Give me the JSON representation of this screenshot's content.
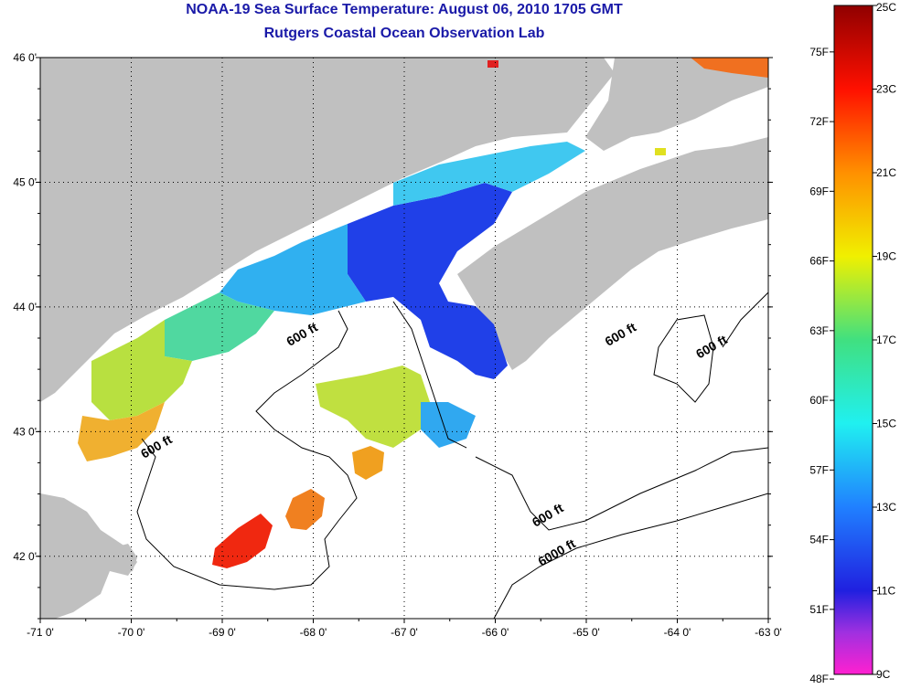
{
  "title_line1": "NOAA-19 Sea Surface Temperature:  August 06, 2010 1705 GMT",
  "title_line2": "Rutgers Coastal Ocean Observation Lab",
  "map": {
    "lon_min": -71.0,
    "lon_max": -63.0,
    "lat_min": 41.5,
    "lat_max": 46.0,
    "lon_ticks": [
      -71,
      -70,
      -69,
      -68,
      -67,
      -66,
      -65,
      -64,
      -63
    ],
    "lon_tick_labels": [
      "-71 0'",
      "-70 0'",
      "-69 0'",
      "-68 0'",
      "-67 0'",
      "-66 0'",
      "-65 0'",
      "-64 0'",
      "-63 0'"
    ],
    "lat_ticks": [
      46,
      45,
      44,
      43,
      42
    ],
    "lat_tick_labels": [
      "46 0'",
      "45 0'",
      "44 0'",
      "43 0'",
      "42 0'"
    ],
    "contour_labels": [
      {
        "text": "600 ft",
        "lon": -68.1,
        "lat": 43.75
      },
      {
        "text": "600 ft",
        "lon": -69.7,
        "lat": 42.85
      },
      {
        "text": "600 ft",
        "lon": -64.6,
        "lat": 43.75
      },
      {
        "text": "600 ft",
        "lon": -63.6,
        "lat": 43.65
      },
      {
        "text": "600 ft",
        "lon": -65.4,
        "lat": 42.3
      },
      {
        "text": "6000 ft",
        "lon": -65.3,
        "lat": 42.0
      }
    ],
    "land_color": "#c0c0c0",
    "nodata_color": "#ffffff"
  },
  "colorbar": {
    "fahrenheit_labels": [
      "75F",
      "72F",
      "69F",
      "66F",
      "63F",
      "60F",
      "57F",
      "54F",
      "51F",
      "48F"
    ],
    "celsius_labels": [
      "25C",
      "23C",
      "21C",
      "19C",
      "17C",
      "15C",
      "13C",
      "11C",
      "9C"
    ],
    "celsius_min": 9,
    "celsius_max": 25,
    "stops": [
      {
        "c": 9,
        "color": "#ff20d0"
      },
      {
        "c": 10,
        "color": "#a030e0"
      },
      {
        "c": 11,
        "color": "#2020e0"
      },
      {
        "c": 13,
        "color": "#2080ff"
      },
      {
        "c": 15,
        "color": "#20f0f0"
      },
      {
        "c": 17,
        "color": "#40e080"
      },
      {
        "c": 19,
        "color": "#f0f000"
      },
      {
        "c": 21,
        "color": "#ff9000"
      },
      {
        "c": 23,
        "color": "#ff1000"
      },
      {
        "c": 25,
        "color": "#900000"
      }
    ]
  }
}
